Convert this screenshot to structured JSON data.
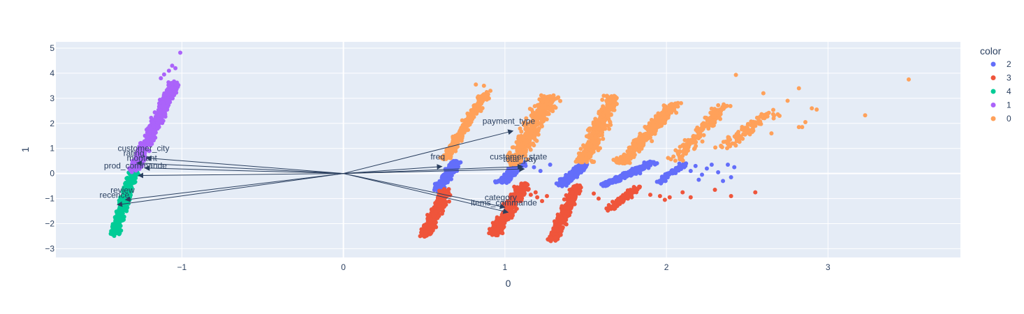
{
  "chart_data": {
    "type": "scatter",
    "title": "",
    "xlabel": "0",
    "ylabel": "1",
    "xlim": [
      -1.78,
      3.82
    ],
    "ylim": [
      -3.35,
      5.25
    ],
    "grid": true,
    "legend_position": "right",
    "x_ticks": [
      {
        "value": -1,
        "label": "−1"
      },
      {
        "value": 0,
        "label": "0"
      },
      {
        "value": 1,
        "label": "1"
      },
      {
        "value": 2,
        "label": "2"
      },
      {
        "value": 3,
        "label": "3"
      }
    ],
    "y_ticks": [
      {
        "value": -3,
        "label": "−3"
      },
      {
        "value": -2,
        "label": "−2"
      },
      {
        "value": -1,
        "label": "−1"
      },
      {
        "value": 0,
        "label": "0"
      },
      {
        "value": 1,
        "label": "1"
      },
      {
        "value": 2,
        "label": "2"
      },
      {
        "value": 3,
        "label": "3"
      },
      {
        "value": 4,
        "label": "4"
      },
      {
        "value": 5,
        "label": "5"
      }
    ],
    "legend": {
      "title": "color",
      "entries": [
        {
          "name": "2",
          "color": "#636efa"
        },
        {
          "name": "3",
          "color": "#ef553b"
        },
        {
          "name": "4",
          "color": "#00cc96"
        },
        {
          "name": "1",
          "color": "#ab63fa"
        },
        {
          "name": "0",
          "color": "#ffa15a"
        }
      ]
    },
    "series": [
      {
        "name": "2",
        "color": "#636efa",
        "clusters": [
          {
            "x0": 0.58,
            "y0": -0.65,
            "x1": 0.7,
            "y1": 0.45,
            "width": 0.09,
            "n": 240
          },
          {
            "x0": 0.98,
            "y0": -0.35,
            "x1": 1.1,
            "y1": 0.45,
            "width": 0.1,
            "n": 220
          },
          {
            "x0": 1.35,
            "y0": -0.45,
            "x1": 1.5,
            "y1": 0.45,
            "width": 0.1,
            "n": 220
          },
          {
            "x0": 1.62,
            "y0": -0.45,
            "x1": 1.92,
            "y1": 0.45,
            "width": 0.08,
            "n": 220
          },
          {
            "x0": 1.95,
            "y0": -0.35,
            "x1": 2.12,
            "y1": 0.4,
            "width": 0.06,
            "n": 90
          }
        ],
        "points": [
          {
            "x": 1.18,
            "y": 0.25
          },
          {
            "x": 1.22,
            "y": 0.1
          },
          {
            "x": 1.28,
            "y": 0.35
          },
          {
            "x": 2.15,
            "y": 0.1
          },
          {
            "x": 2.18,
            "y": 0.3
          },
          {
            "x": 2.22,
            "y": -0.05
          },
          {
            "x": 2.25,
            "y": 0.2
          },
          {
            "x": 2.28,
            "y": 0.35
          },
          {
            "x": 2.32,
            "y": 0.05
          },
          {
            "x": 2.38,
            "y": 0.35
          },
          {
            "x": 2.4,
            "y": -0.15
          },
          {
            "x": 2.42,
            "y": 0.25
          },
          {
            "x": 2.35,
            "y": -0.3
          },
          {
            "x": 2.2,
            "y": -0.25
          }
        ]
      },
      {
        "name": "3",
        "color": "#ef553b",
        "clusters": [
          {
            "x0": 0.5,
            "y0": -2.5,
            "x1": 0.64,
            "y1": -0.65,
            "width": 0.1,
            "n": 300
          },
          {
            "x0": 0.93,
            "y0": -2.45,
            "x1": 1.12,
            "y1": -0.4,
            "width": 0.12,
            "n": 340
          },
          {
            "x0": 1.3,
            "y0": -2.65,
            "x1": 1.45,
            "y1": -0.45,
            "width": 0.1,
            "n": 320
          },
          {
            "x0": 1.65,
            "y0": -1.4,
            "x1": 1.82,
            "y1": -0.55,
            "width": 0.09,
            "n": 120
          }
        ],
        "points": [
          {
            "x": 1.16,
            "y": -0.85
          },
          {
            "x": 1.2,
            "y": -0.95
          },
          {
            "x": 1.23,
            "y": -1.1
          },
          {
            "x": 1.19,
            "y": -0.75
          },
          {
            "x": 1.26,
            "y": -0.9
          },
          {
            "x": 1.55,
            "y": -0.8
          },
          {
            "x": 1.58,
            "y": -1.0
          },
          {
            "x": 1.9,
            "y": -0.85
          },
          {
            "x": 1.96,
            "y": -0.9
          },
          {
            "x": 1.99,
            "y": -1.05
          },
          {
            "x": 2.02,
            "y": -0.95
          },
          {
            "x": 2.1,
            "y": -0.75
          },
          {
            "x": 2.15,
            "y": -0.95
          },
          {
            "x": 2.3,
            "y": -0.65
          },
          {
            "x": 2.4,
            "y": -0.9
          },
          {
            "x": 2.55,
            "y": -0.75
          }
        ]
      },
      {
        "name": "4",
        "color": "#00cc96",
        "clusters": [
          {
            "x0": -1.42,
            "y0": -2.45,
            "x1": -1.3,
            "y1": 0.05,
            "width": 0.09,
            "n": 360
          }
        ],
        "points": []
      },
      {
        "name": "1",
        "color": "#ab63fa",
        "clusters": [
          {
            "x0": -1.3,
            "y0": 0.1,
            "x1": -1.05,
            "y1": 3.6,
            "width": 0.1,
            "n": 520
          }
        ],
        "points": [
          {
            "x": -1.01,
            "y": 4.82
          },
          {
            "x": -1.06,
            "y": 4.3
          },
          {
            "x": -1.08,
            "y": 4.1
          },
          {
            "x": -1.11,
            "y": 3.95
          },
          {
            "x": -1.04,
            "y": 4.2
          },
          {
            "x": -1.13,
            "y": 3.8
          }
        ]
      },
      {
        "name": "0",
        "color": "#ffa15a",
        "clusters": [
          {
            "x0": 0.63,
            "y0": 0.6,
            "x1": 0.88,
            "y1": 3.2,
            "width": 0.09,
            "n": 320
          },
          {
            "x0": 1.05,
            "y0": 0.4,
            "x1": 1.28,
            "y1": 3.1,
            "width": 0.18,
            "n": 420
          },
          {
            "x0": 1.48,
            "y0": 0.4,
            "x1": 1.68,
            "y1": 3.1,
            "width": 0.15,
            "n": 380
          },
          {
            "x0": 1.72,
            "y0": 0.4,
            "x1": 2.05,
            "y1": 2.8,
            "width": 0.14,
            "n": 320
          },
          {
            "x0": 2.05,
            "y0": 0.5,
            "x1": 2.35,
            "y1": 2.7,
            "width": 0.14,
            "n": 160
          },
          {
            "x0": 2.35,
            "y0": 1.0,
            "x1": 2.65,
            "y1": 2.5,
            "width": 0.16,
            "n": 90
          }
        ],
        "points": [
          {
            "x": 0.82,
            "y": 3.55
          },
          {
            "x": 0.87,
            "y": 3.5
          },
          {
            "x": 0.91,
            "y": 3.3
          },
          {
            "x": 2.43,
            "y": 3.93
          },
          {
            "x": 2.82,
            "y": 3.4
          },
          {
            "x": 2.93,
            "y": 2.55
          },
          {
            "x": 2.9,
            "y": 2.6
          },
          {
            "x": 2.75,
            "y": 2.9
          },
          {
            "x": 2.84,
            "y": 1.85
          },
          {
            "x": 2.86,
            "y": 2.05
          },
          {
            "x": 2.82,
            "y": 1.85
          },
          {
            "x": 2.7,
            "y": 2.3
          },
          {
            "x": 3.23,
            "y": 2.32
          },
          {
            "x": 3.5,
            "y": 3.75
          },
          {
            "x": 2.6,
            "y": 3.2
          },
          {
            "x": 2.65,
            "y": 1.6
          }
        ]
      }
    ],
    "loadings": [
      {
        "label": "customer_city",
        "x": -1.22,
        "y": 0.62
      },
      {
        "label": "rating",
        "x": -1.28,
        "y": 0.42
      },
      {
        "label": "montant",
        "x": -1.23,
        "y": 0.22
      },
      {
        "label": "prod_commande",
        "x": -1.27,
        "y": -0.08
      },
      {
        "label": "review",
        "x": -1.35,
        "y": -1.05
      },
      {
        "label": "recence",
        "x": -1.4,
        "y": -1.25
      },
      {
        "label": "payment_type",
        "x": 1.05,
        "y": 1.7
      },
      {
        "label": "freq",
        "x": 0.61,
        "y": 0.28
      },
      {
        "label": "customer_state",
        "x": 1.11,
        "y": 0.28
      },
      {
        "label": "total_pay",
        "x": 1.12,
        "y": 0.18
      },
      {
        "label": "category",
        "x": 1.0,
        "y": -1.35
      },
      {
        "label": "items_commande",
        "x": 1.02,
        "y": -1.55
      }
    ]
  }
}
